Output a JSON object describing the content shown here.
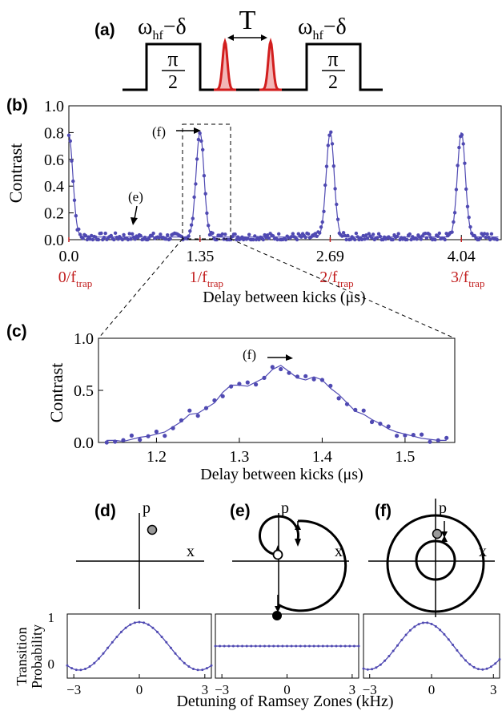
{
  "colors": {
    "data": "#4f49b2",
    "pulse": "#d21e1e",
    "pulse_fill": "#f2b6b6",
    "red_label": "#c21f1f",
    "ink": "#000000"
  },
  "panel_labels": {
    "a": "(a)",
    "b": "(b)",
    "c": "(c)",
    "d": "(d)",
    "e": "(e)",
    "f": "(f)"
  },
  "panel_a": {
    "pulse_left_label": "ωhf−δ",
    "pulse_right_label": "ωhf−δ",
    "pi_symbol": "π",
    "denominator": "2",
    "delay_label": "T"
  },
  "panel_b": {
    "ylabel": "Contrast",
    "xlabel": "Delay between kicks (μs)",
    "yticks": [
      "0.0",
      "0.2",
      "0.4",
      "0.6",
      "0.8",
      "1.0"
    ],
    "xticks": [
      "0.0",
      "1.35",
      "2.69",
      "4.04"
    ],
    "trap_labels": [
      "0/ftrap",
      "1/ftrap",
      "2/ftrap",
      "3/ftrap"
    ],
    "annotation_e": "(e)",
    "annotation_f": "(f)"
  },
  "panel_c": {
    "ylabel": "Contrast",
    "xlabel": "Delay between kicks (μs)",
    "yticks": [
      "0.0",
      "0.5",
      "1.0"
    ],
    "xticks": [
      "1.2",
      "1.3",
      "1.4",
      "1.5"
    ],
    "annotation_f": "(f)"
  },
  "phase_space": {
    "p_label": "p",
    "x_label": "x"
  },
  "panel_bottom": {
    "ylabel_line1": "Transition",
    "ylabel_line2": "Probability",
    "xlabel": "Detuning of Ramsey Zones (kHz)",
    "yticks": [
      "0",
      "1"
    ],
    "xticks": [
      "−3",
      "0",
      "3"
    ]
  },
  "chart_data": [
    {
      "id": "b",
      "type": "scatter",
      "xlabel": "Delay between kicks (μs)",
      "ylabel": "Contrast",
      "xlim": [
        0,
        4.45
      ],
      "ylim": [
        0,
        1.0
      ],
      "peaks": [
        {
          "x": 0.0,
          "y": 0.78
        },
        {
          "x": 1.35,
          "y": 0.8
        },
        {
          "x": 2.69,
          "y": 0.8
        },
        {
          "x": 4.04,
          "y": 0.8
        }
      ],
      "peak_width_us": 0.09,
      "baseline": 0.02,
      "fit": "solid line"
    },
    {
      "id": "c",
      "type": "scatter",
      "xlabel": "Delay between kicks (μs)",
      "ylabel": "Contrast",
      "xlim": [
        1.13,
        1.56
      ],
      "ylim": [
        0,
        1.0
      ],
      "x": [
        1.14,
        1.15,
        1.16,
        1.17,
        1.18,
        1.19,
        1.2,
        1.21,
        1.22,
        1.23,
        1.24,
        1.25,
        1.26,
        1.27,
        1.28,
        1.29,
        1.3,
        1.31,
        1.32,
        1.33,
        1.34,
        1.35,
        1.36,
        1.37,
        1.38,
        1.39,
        1.4,
        1.41,
        1.42,
        1.43,
        1.44,
        1.45,
        1.46,
        1.47,
        1.48,
        1.49,
        1.5,
        1.51,
        1.52,
        1.53,
        1.54,
        1.55
      ],
      "y": [
        0.02,
        0.02,
        0.01,
        0.03,
        0.05,
        0.06,
        0.08,
        0.1,
        0.15,
        0.2,
        0.27,
        0.28,
        0.33,
        0.38,
        0.48,
        0.55,
        0.55,
        0.54,
        0.58,
        0.62,
        0.7,
        0.74,
        0.68,
        0.62,
        0.6,
        0.63,
        0.6,
        0.52,
        0.46,
        0.38,
        0.3,
        0.27,
        0.22,
        0.18,
        0.13,
        0.1,
        0.08,
        0.06,
        0.04,
        0.03,
        0.02,
        0.02
      ],
      "annotated_point": {
        "x": 1.345,
        "y": 0.76
      }
    },
    {
      "id": "d",
      "type": "line",
      "xlabel": "",
      "ylabel": "Transition Probability",
      "xlim": [
        -3.3,
        3.3
      ],
      "ylim": [
        0,
        1
      ],
      "model": "0.5 + 0.44*cos(2*pi*(x - 0.0)/5.5)",
      "points": 33
    },
    {
      "id": "e",
      "type": "line",
      "xlim": [
        -3.3,
        3.3
      ],
      "ylim": [
        0,
        1
      ],
      "model": "constant",
      "value": 0.5,
      "points": 33
    },
    {
      "id": "f",
      "type": "line",
      "xlim": [
        -3.3,
        3.3
      ],
      "ylim": [
        0,
        1
      ],
      "model": "0.5 + 0.43*cos(2*pi*(x + 0.3)/5.5)",
      "points": 33
    }
  ]
}
